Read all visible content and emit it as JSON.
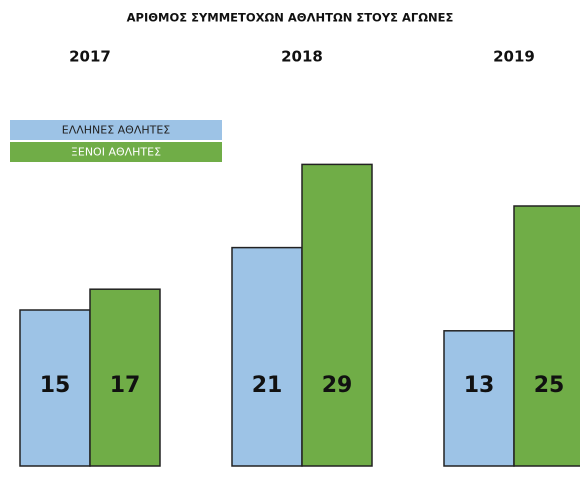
{
  "chart_data": {
    "type": "bar",
    "title": "ΑΡΙΘΜΟΣ ΣΥΜΜΕΤΟΧΩΝ ΑΘΛΗΤΩΝ ΣΤΟΥΣ ΑΓΩΝΕΣ",
    "categories": [
      "2017",
      "2018",
      "2019"
    ],
    "series": [
      {
        "name": "ΕΛΛΗΝΕΣ ΑΘΛΗΤΕΣ",
        "color": "#9dc3e6",
        "values": [
          15,
          21,
          13
        ]
      },
      {
        "name": "ΞΕΝΟΙ ΑΘΛΗΤΕΣ",
        "color": "#70ad47",
        "values": [
          17,
          29,
          25
        ]
      }
    ],
    "legend": "top-left"
  }
}
